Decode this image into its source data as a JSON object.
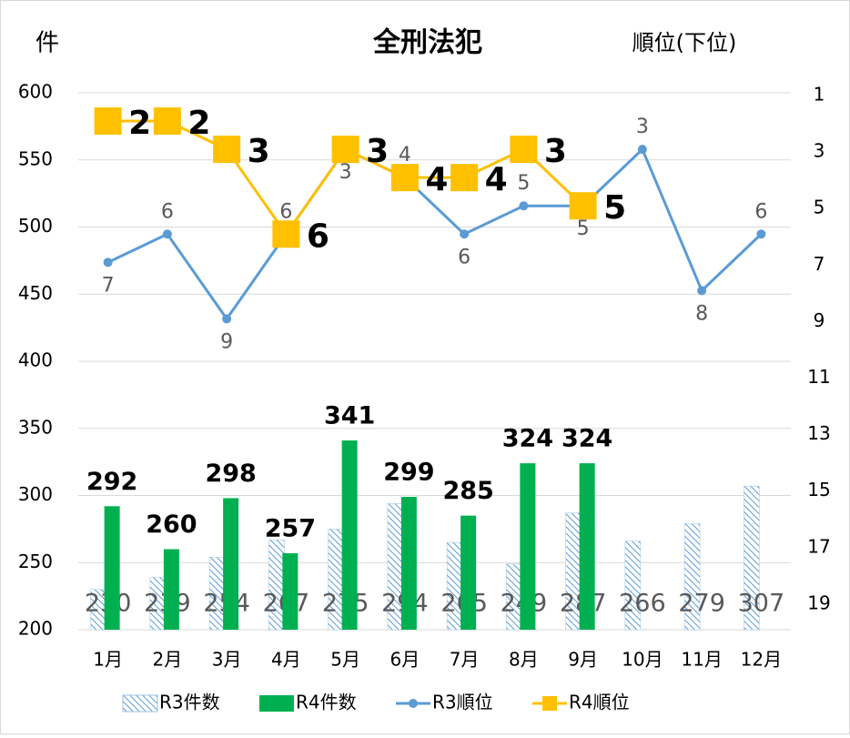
{
  "chart_data": {
    "type": "combo",
    "title": "全刑法犯",
    "y_label": "件",
    "y2_label": "順位(下位)",
    "categories": [
      "1月",
      "2月",
      "3月",
      "4月",
      "5月",
      "6月",
      "7月",
      "8月",
      "9月",
      "10月",
      "11月",
      "12月"
    ],
    "series": [
      {
        "name": "R3件数",
        "kind": "bar",
        "color": "#9dc3e6",
        "pattern": "hatch",
        "values": [
          230,
          239,
          254,
          267,
          275,
          294,
          265,
          249,
          287,
          266,
          279,
          307
        ]
      },
      {
        "name": "R4件数",
        "kind": "bar",
        "color": "#00b050",
        "values": [
          292,
          260,
          298,
          257,
          341,
          299,
          285,
          324,
          324,
          null,
          null,
          null
        ]
      },
      {
        "name": "R3順位",
        "kind": "line",
        "axis": "y2",
        "color": "#5b9bd5",
        "marker": "circle",
        "values": [
          7,
          6,
          9,
          6,
          3,
          4,
          6,
          5,
          5,
          3,
          8,
          6
        ]
      },
      {
        "name": "R4順位",
        "kind": "line",
        "axis": "y2",
        "color": "#ffc000",
        "marker": "square",
        "values": [
          2,
          2,
          3,
          6,
          3,
          4,
          4,
          3,
          5,
          null,
          null,
          null
        ]
      }
    ],
    "ylim": [
      200,
      600
    ],
    "yticks": [
      200,
      250,
      300,
      350,
      400,
      450,
      500,
      550,
      600
    ],
    "y2lim": [
      1,
      20
    ],
    "y2ticks": [
      1,
      3,
      5,
      7,
      9,
      11,
      13,
      15,
      17,
      19
    ],
    "y2_inverted": true,
    "grid": true,
    "legend": "bottom"
  }
}
